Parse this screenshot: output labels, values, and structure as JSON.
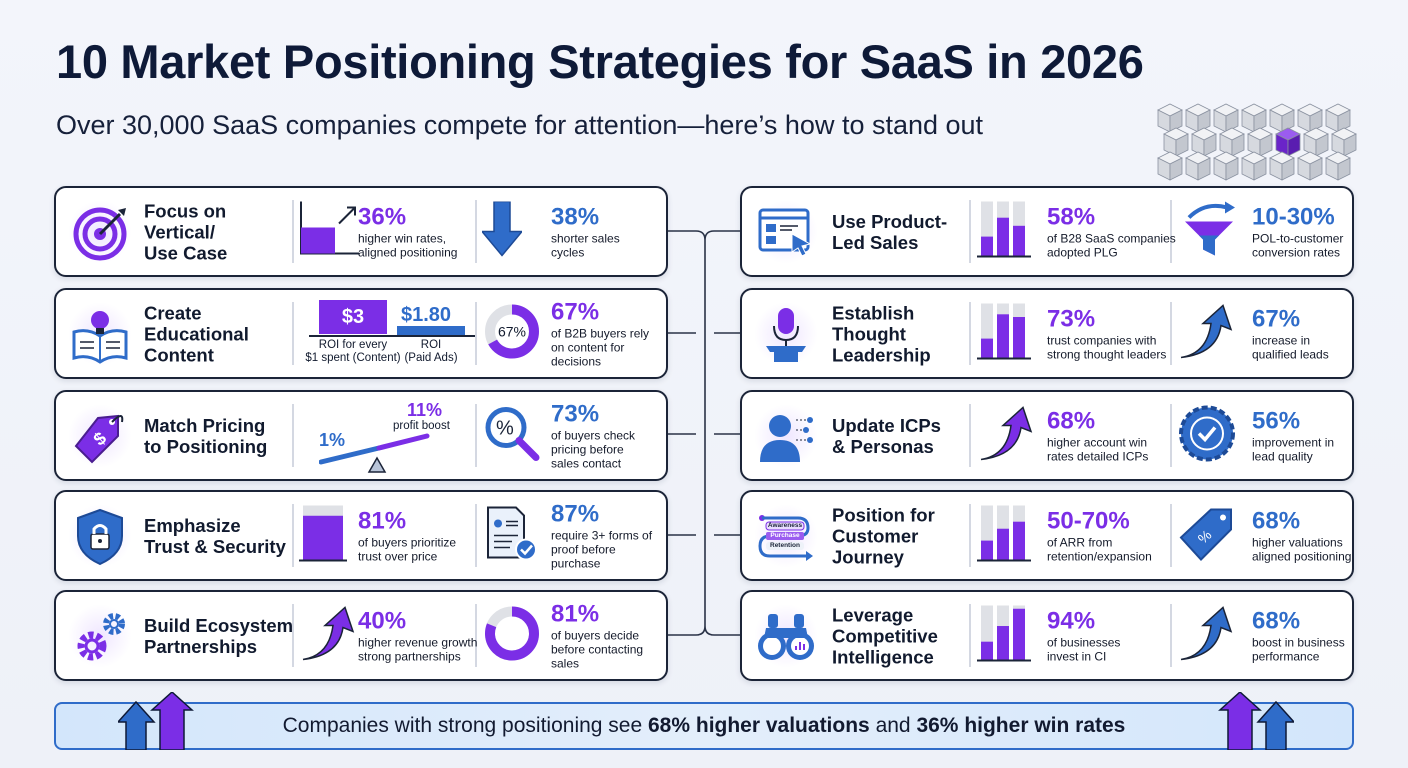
{
  "header": {
    "title": "10 Market Positioning Strategies for SaaS in 2026",
    "subtitle": "Over 30,000 SaaS companies compete for attention—here’s how to stand out"
  },
  "colors": {
    "purple": "#7b2ee6",
    "blue": "#2f6cc9",
    "dark": "#0e1a38"
  },
  "cards": [
    {
      "side": "left",
      "icon": "target-icon",
      "title": "Focus on\nVertical/\nUse Case",
      "stat1": {
        "visual": "bar-up",
        "fill": 0.5,
        "value": "36%",
        "desc": "higher win rates,\naligned positioning",
        "color": "purple"
      },
      "stat2": {
        "visual": "arrow-down",
        "value": "38%",
        "desc": "shorter sales\ncycles",
        "color": "blue"
      }
    },
    {
      "side": "left",
      "icon": "book-lightbulb-icon",
      "title": "Create\nEducational\nContent",
      "stat1": {
        "visual": "roi-bars",
        "bars": [
          {
            "label": "$3",
            "caption": "ROI for every\n$1 spent (Content)"
          },
          {
            "label": "$1.80",
            "caption": "ROI\n(Paid Ads)"
          }
        ]
      },
      "stat2": {
        "visual": "donut",
        "fill": 0.67,
        "center": "67%",
        "value": "67%",
        "desc": "of B2B buyers rely\non content for\ndecisions",
        "color": "purple"
      }
    },
    {
      "side": "left",
      "icon": "price-tag-icon",
      "title": "Match Pricing\nto Positioning",
      "stat1": {
        "visual": "seesaw",
        "low": "1%",
        "high": "11%",
        "desc": "profit boost"
      },
      "stat2": {
        "visual": "magnifier-percent",
        "value": "73%",
        "desc": "of buyers check\npricing before\nsales contact",
        "color": "blue"
      }
    },
    {
      "side": "left",
      "icon": "shield-lock-icon",
      "title": "Emphasize\nTrust & Security",
      "stat1": {
        "visual": "single-bar",
        "fill": 0.81,
        "value": "81%",
        "desc": "of buyers prioritize\ntrust over price",
        "color": "purple"
      },
      "stat2": {
        "visual": "document-check",
        "value": "87%",
        "desc": "require 3+ forms of\nproof before\npurchase",
        "color": "blue"
      }
    },
    {
      "side": "left",
      "icon": "gears-icon",
      "title": "Build Ecosystem\nPartnerships",
      "stat1": {
        "visual": "curve-arrow-purple",
        "value": "40%",
        "desc": "higher revenue growth\nstrong partnerships",
        "color": "purple"
      },
      "stat2": {
        "visual": "donut",
        "fill": 0.81,
        "value": "81%",
        "desc": "of buyers decide\nbefore contacting\nsales",
        "color": "purple"
      }
    },
    {
      "side": "right",
      "icon": "browser-cursor-icon",
      "title": "Use Product-\nLed Sales",
      "stat1": {
        "visual": "three-bars",
        "fills": [
          0.35,
          0.7,
          0.55
        ],
        "value": "58%",
        "desc": "of B28 SaaS companies\nadopted PLG",
        "color": "purple"
      },
      "stat2": {
        "visual": "funnel",
        "value": "10-30%",
        "desc": "POL-to-customer\nconversion rates",
        "color": "blue"
      }
    },
    {
      "side": "right",
      "icon": "microphone-podium-icon",
      "title": "Establish\nThought\nLeadership",
      "stat1": {
        "visual": "three-bars",
        "fills": [
          0.35,
          0.8,
          0.75
        ],
        "value": "73%",
        "desc": "trust companies with\nstrong thought leaders",
        "color": "purple"
      },
      "stat2": {
        "visual": "curve-arrow-blue",
        "value": "67%",
        "desc": "increase in\nqualified leads",
        "color": "blue"
      }
    },
    {
      "side": "right",
      "icon": "user-persona-icon",
      "title": "Update ICPs\n& Personas",
      "stat1": {
        "visual": "curve-arrow-purple",
        "value": "68%",
        "desc": "higher account win\nrates detailed ICPs",
        "color": "purple"
      },
      "stat2": {
        "visual": "badge-check",
        "value": "56%",
        "desc": "improvement in\nlead quality",
        "color": "blue"
      }
    },
    {
      "side": "right",
      "icon": "journey-path-icon",
      "title": "Position for\nCustomer\nJourney",
      "journey": [
        "Awareness",
        "Purchase",
        "Retention"
      ],
      "stat1": {
        "visual": "three-bars",
        "fills": [
          0.35,
          0.57,
          0.7
        ],
        "value": "50-70%",
        "desc": "of ARR from\nretention/expansion",
        "color": "purple"
      },
      "stat2": {
        "visual": "tag-percent",
        "value": "68%",
        "desc": "higher valuations\naligned positioning",
        "color": "blue"
      }
    },
    {
      "side": "right",
      "icon": "binoculars-icon",
      "title": "Leverage\nCompetitive\nIntelligence",
      "stat1": {
        "visual": "three-bars",
        "fills": [
          0.33,
          0.62,
          0.94
        ],
        "value": "94%",
        "desc": "of businesses\ninvest in CI",
        "color": "purple"
      },
      "stat2": {
        "visual": "curve-arrow-blue",
        "value": "68%",
        "desc": "boost in business\nperformance",
        "color": "blue"
      }
    }
  ],
  "banner": {
    "prefix": "Companies with strong positioning see ",
    "bold1": "68% higher valuations",
    "middle": " and ",
    "bold2": "36% higher win rates"
  }
}
